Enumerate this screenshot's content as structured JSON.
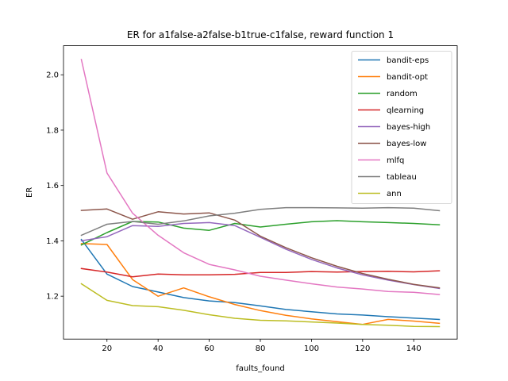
{
  "chart_data": {
    "type": "line",
    "title": "ER for a1false-a2false-b1true-c1false, reward function 1",
    "xlabel": "faults_found",
    "ylabel": "ER",
    "xlim": [
      3,
      157
    ],
    "ylim": [
      1.045,
      2.105
    ],
    "xticks": [
      20,
      40,
      60,
      80,
      100,
      120,
      140
    ],
    "yticks": [
      1.2,
      1.4,
      1.6,
      1.8,
      2.0
    ],
    "ytick_labels": [
      "1.2",
      "1.4",
      "1.6",
      "1.8",
      "2.0"
    ],
    "grid": false,
    "legend_position": "top-right",
    "x": [
      10,
      20,
      30,
      40,
      50,
      60,
      70,
      80,
      90,
      100,
      110,
      120,
      130,
      140,
      150
    ],
    "series": [
      {
        "name": "bandit-eps",
        "color": "#1f77b4",
        "values": [
          1.405,
          1.28,
          1.235,
          1.215,
          1.195,
          1.183,
          1.177,
          1.165,
          1.152,
          1.144,
          1.136,
          1.132,
          1.126,
          1.121,
          1.116
        ]
      },
      {
        "name": "bandit-opt",
        "color": "#ff7f0e",
        "values": [
          1.39,
          1.387,
          1.26,
          1.2,
          1.23,
          1.198,
          1.17,
          1.148,
          1.131,
          1.118,
          1.108,
          1.098,
          1.116,
          1.11,
          1.102
        ]
      },
      {
        "name": "random",
        "color": "#2ca02c",
        "values": [
          1.385,
          1.43,
          1.47,
          1.468,
          1.446,
          1.438,
          1.463,
          1.45,
          1.46,
          1.469,
          1.473,
          1.469,
          1.466,
          1.463,
          1.458
        ]
      },
      {
        "name": "qlearning",
        "color": "#d62728",
        "values": [
          1.3,
          1.287,
          1.27,
          1.28,
          1.277,
          1.277,
          1.279,
          1.286,
          1.286,
          1.289,
          1.287,
          1.289,
          1.29,
          1.288,
          1.292
        ]
      },
      {
        "name": "bayes-high",
        "color": "#9467bd",
        "values": [
          1.4,
          1.415,
          1.455,
          1.452,
          1.463,
          1.466,
          1.455,
          1.413,
          1.37,
          1.333,
          1.302,
          1.277,
          1.258,
          1.242,
          1.228
        ]
      },
      {
        "name": "bayes-low",
        "color": "#8c564b",
        "values": [
          1.51,
          1.515,
          1.478,
          1.505,
          1.497,
          1.501,
          1.475,
          1.417,
          1.375,
          1.339,
          1.308,
          1.282,
          1.261,
          1.243,
          1.23
        ]
      },
      {
        "name": "mlfq",
        "color": "#e377c2",
        "values": [
          2.055,
          1.645,
          1.5,
          1.42,
          1.357,
          1.315,
          1.295,
          1.272,
          1.258,
          1.245,
          1.233,
          1.226,
          1.217,
          1.214,
          1.206
        ]
      },
      {
        "name": "tableau",
        "color": "#7f7f7f",
        "values": [
          1.42,
          1.46,
          1.47,
          1.46,
          1.472,
          1.49,
          1.5,
          1.514,
          1.52,
          1.52,
          1.519,
          1.518,
          1.52,
          1.518,
          1.509
        ]
      },
      {
        "name": "ann",
        "color": "#bcbd22",
        "values": [
          1.245,
          1.185,
          1.166,
          1.162,
          1.149,
          1.133,
          1.12,
          1.113,
          1.111,
          1.107,
          1.103,
          1.098,
          1.095,
          1.091,
          1.09
        ]
      }
    ]
  }
}
